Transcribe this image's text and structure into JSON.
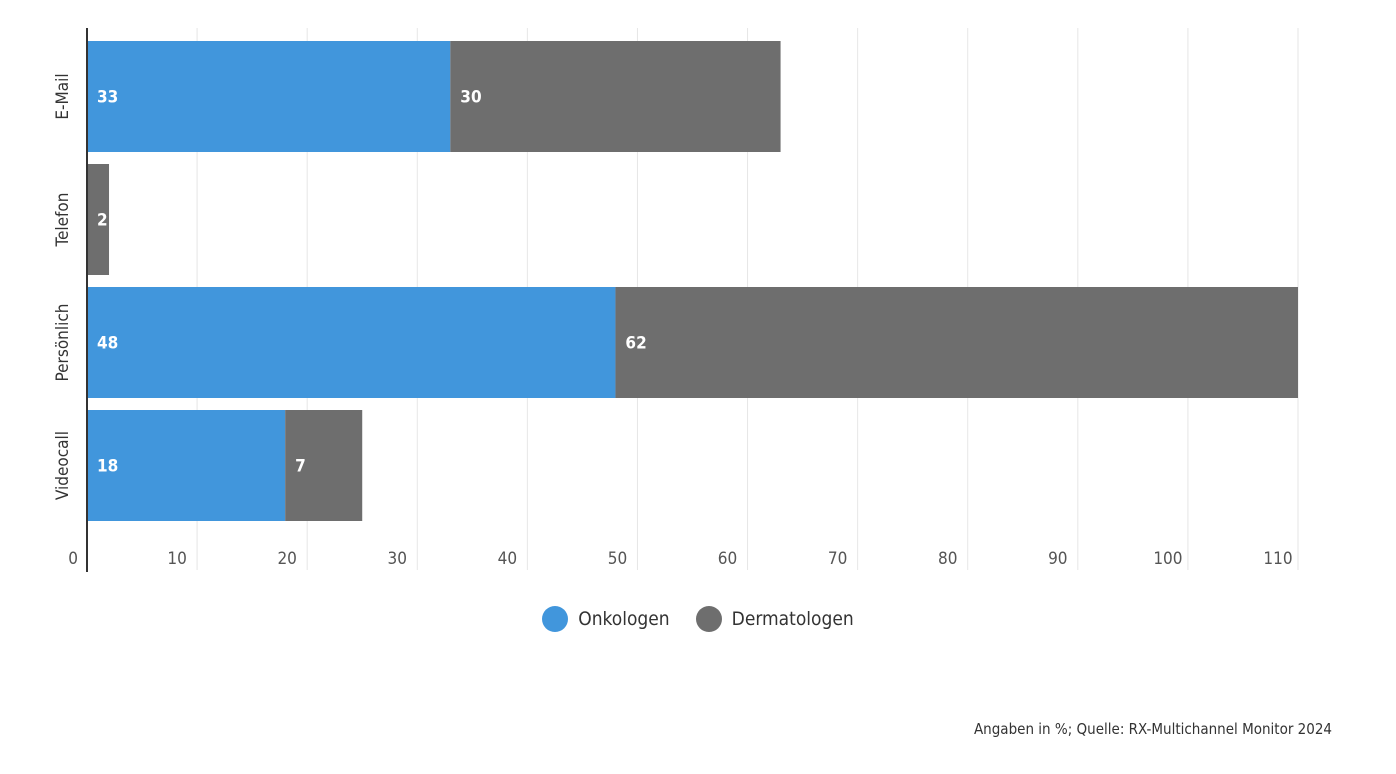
{
  "chart_data": {
    "type": "bar",
    "orientation": "horizontal",
    "stacked": true,
    "categories": [
      "E-Mail",
      "Telefon",
      "Persönlich",
      "Videocall"
    ],
    "series": [
      {
        "name": "Onkologen",
        "values": [
          33,
          0,
          48,
          18
        ],
        "labels": [
          "33",
          "",
          "48",
          "18"
        ]
      },
      {
        "name": "Dermatologen",
        "values": [
          30,
          2,
          62,
          7
        ],
        "labels": [
          "30",
          "2",
          "62",
          "7"
        ]
      }
    ],
    "xlim": [
      0,
      110
    ],
    "xticks": [
      0,
      10,
      20,
      30,
      40,
      50,
      60,
      70,
      80,
      90,
      100,
      110
    ],
    "grid": true,
    "legend_position": "bottom-center",
    "colors": {
      "Onkologen": "#4196dc",
      "Dermatologen": "#6e6e6e"
    },
    "source": "Angaben in %; Quelle: RX-Multichannel Monitor 2024"
  }
}
